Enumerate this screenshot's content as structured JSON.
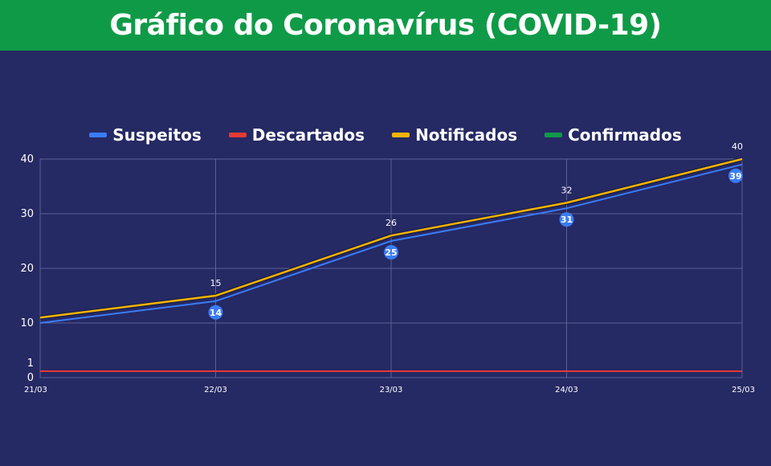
{
  "header": {
    "title": "Gráfico do Coronavírus  (COVID-19)"
  },
  "colors": {
    "background": "#252964",
    "header": "#0f9a48",
    "suspeitos": "#3b7cf5",
    "descartados": "#e53935",
    "notificados": "#f5b400",
    "confirmados": "#0f9a48"
  },
  "chart_data": {
    "type": "line",
    "categories": [
      "21/03",
      "22/03",
      "23/03",
      "24/03",
      "25/03"
    ],
    "y_ticks": [
      0,
      1,
      10,
      20,
      30,
      40
    ],
    "ylim": [
      0,
      40
    ],
    "grid": true,
    "legend_position": "top-center",
    "series": [
      {
        "name": "Suspeitos",
        "values": [
          10,
          14,
          25,
          31,
          39
        ],
        "labels": [
          "",
          "14",
          "25",
          "31",
          "39"
        ]
      },
      {
        "name": "Descartados",
        "values": [
          0,
          0,
          0,
          0,
          0
        ]
      },
      {
        "name": "Notificados",
        "values": [
          11,
          15,
          26,
          32,
          40
        ],
        "labels": [
          "",
          "15",
          "26",
          "32",
          "40"
        ]
      },
      {
        "name": "Confirmados",
        "values": [
          0,
          0,
          0,
          0,
          0
        ]
      }
    ]
  }
}
